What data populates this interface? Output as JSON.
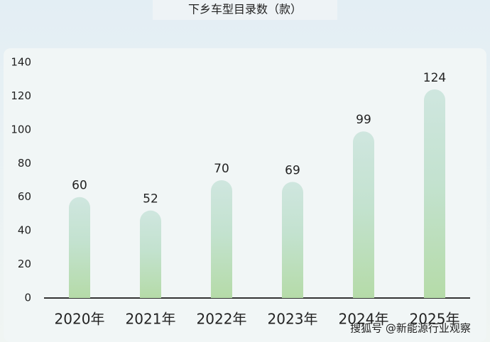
{
  "chart_data": {
    "type": "bar",
    "title": "下乡车型目录数（款）",
    "categories": [
      "2020年",
      "2021年",
      "2022年",
      "2023年",
      "2024年",
      "2025年"
    ],
    "values": [
      60,
      52,
      70,
      69,
      99,
      124
    ],
    "ylim": [
      0,
      140
    ],
    "yticks": [
      0,
      20,
      40,
      60,
      80,
      100,
      120,
      140
    ],
    "color": "#b5dba8"
  },
  "watermark": "搜狐号 @新能源行业观察"
}
